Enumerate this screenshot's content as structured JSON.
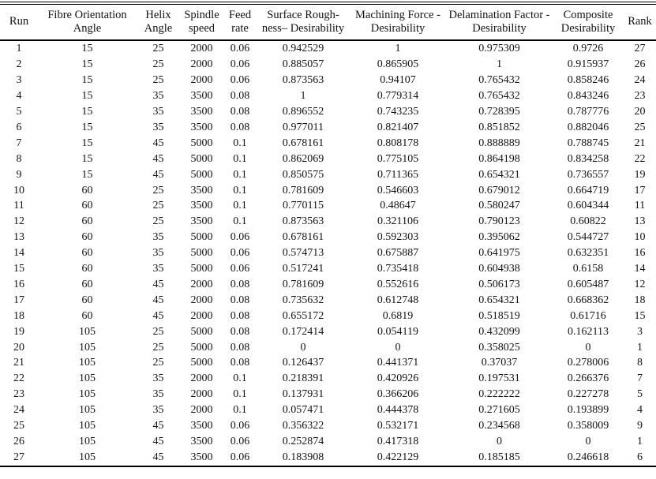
{
  "table": {
    "columns": [
      {
        "key": "run",
        "label": "Run"
      },
      {
        "key": "fibre_orientation_angle",
        "label": "Fibre Orientation\nAngle"
      },
      {
        "key": "helix_angle",
        "label": "Helix\nAngle"
      },
      {
        "key": "spindle_speed",
        "label": "Spindle\nspeed"
      },
      {
        "key": "feed_rate",
        "label": "Feed\nrate"
      },
      {
        "key": "surface_roughness_desirability",
        "label": "Surface Rough-\nness– Desirability"
      },
      {
        "key": "machining_force_desirability",
        "label": "Machining Force -\nDesirability"
      },
      {
        "key": "delamination_factor_desirability",
        "label": "Delamination Factor -\nDesirability"
      },
      {
        "key": "composite_desirability",
        "label": "Composite\nDesirability"
      },
      {
        "key": "rank",
        "label": "Rank"
      }
    ],
    "rows": [
      [
        "1",
        "15",
        "25",
        "2000",
        "0.06",
        "0.942529",
        "1",
        "0.975309",
        "0.9726",
        "27"
      ],
      [
        "2",
        "15",
        "25",
        "2000",
        "0.06",
        "0.885057",
        "0.865905",
        "1",
        "0.915937",
        "26"
      ],
      [
        "3",
        "15",
        "25",
        "2000",
        "0.06",
        "0.873563",
        "0.94107",
        "0.765432",
        "0.858246",
        "24"
      ],
      [
        "4",
        "15",
        "35",
        "3500",
        "0.08",
        "1",
        "0.779314",
        "0.765432",
        "0.843246",
        "23"
      ],
      [
        "5",
        "15",
        "35",
        "3500",
        "0.08",
        "0.896552",
        "0.743235",
        "0.728395",
        "0.787776",
        "20"
      ],
      [
        "6",
        "15",
        "35",
        "3500",
        "0.08",
        "0.977011",
        "0.821407",
        "0.851852",
        "0.882046",
        "25"
      ],
      [
        "7",
        "15",
        "45",
        "5000",
        "0.1",
        "0.678161",
        "0.808178",
        "0.888889",
        "0.788745",
        "21"
      ],
      [
        "8",
        "15",
        "45",
        "5000",
        "0.1",
        "0.862069",
        "0.775105",
        "0.864198",
        "0.834258",
        "22"
      ],
      [
        "9",
        "15",
        "45",
        "5000",
        "0.1",
        "0.850575",
        "0.711365",
        "0.654321",
        "0.736557",
        "19"
      ],
      [
        "10",
        "60",
        "25",
        "3500",
        "0.1",
        "0.781609",
        "0.546603",
        "0.679012",
        "0.664719",
        "17"
      ],
      [
        "11",
        "60",
        "25",
        "3500",
        "0.1",
        "0.770115",
        "0.48647",
        "0.580247",
        "0.604344",
        "11"
      ],
      [
        "12",
        "60",
        "25",
        "3500",
        "0.1",
        "0.873563",
        "0.321106",
        "0.790123",
        "0.60822",
        "13"
      ],
      [
        "13",
        "60",
        "35",
        "5000",
        "0.06",
        "0.678161",
        "0.592303",
        "0.395062",
        "0.544727",
        "10"
      ],
      [
        "14",
        "60",
        "35",
        "5000",
        "0.06",
        "0.574713",
        "0.675887",
        "0.641975",
        "0.632351",
        "16"
      ],
      [
        "15",
        "60",
        "35",
        "5000",
        "0.06",
        "0.517241",
        "0.735418",
        "0.604938",
        "0.6158",
        "14"
      ],
      [
        "16",
        "60",
        "45",
        "2000",
        "0.08",
        "0.781609",
        "0.552616",
        "0.506173",
        "0.605487",
        "12"
      ],
      [
        "17",
        "60",
        "45",
        "2000",
        "0.08",
        "0.735632",
        "0.612748",
        "0.654321",
        "0.668362",
        "18"
      ],
      [
        "18",
        "60",
        "45",
        "2000",
        "0.08",
        "0.655172",
        "0.6819",
        "0.518519",
        "0.61716",
        "15"
      ],
      [
        "19",
        "105",
        "25",
        "5000",
        "0.08",
        "0.172414",
        "0.054119",
        "0.432099",
        "0.162113",
        "3"
      ],
      [
        "20",
        "105",
        "25",
        "5000",
        "0.08",
        "0",
        "0",
        "0.358025",
        "0",
        "1"
      ],
      [
        "21",
        "105",
        "25",
        "5000",
        "0.08",
        "0.126437",
        "0.441371",
        "0.37037",
        "0.278006",
        "8"
      ],
      [
        "22",
        "105",
        "35",
        "2000",
        "0.1",
        "0.218391",
        "0.420926",
        "0.197531",
        "0.266376",
        "7"
      ],
      [
        "23",
        "105",
        "35",
        "2000",
        "0.1",
        "0.137931",
        "0.366206",
        "0.222222",
        "0.227278",
        "5"
      ],
      [
        "24",
        "105",
        "35",
        "2000",
        "0.1",
        "0.057471",
        "0.444378",
        "0.271605",
        "0.193899",
        "4"
      ],
      [
        "25",
        "105",
        "45",
        "3500",
        "0.06",
        "0.356322",
        "0.532171",
        "0.234568",
        "0.358009",
        "9"
      ],
      [
        "26",
        "105",
        "45",
        "3500",
        "0.06",
        "0.252874",
        "0.417318",
        "0",
        "0",
        "1"
      ],
      [
        "27",
        "105",
        "45",
        "3500",
        "0.06",
        "0.183908",
        "0.422129",
        "0.185185",
        "0.246618",
        "6"
      ]
    ]
  }
}
